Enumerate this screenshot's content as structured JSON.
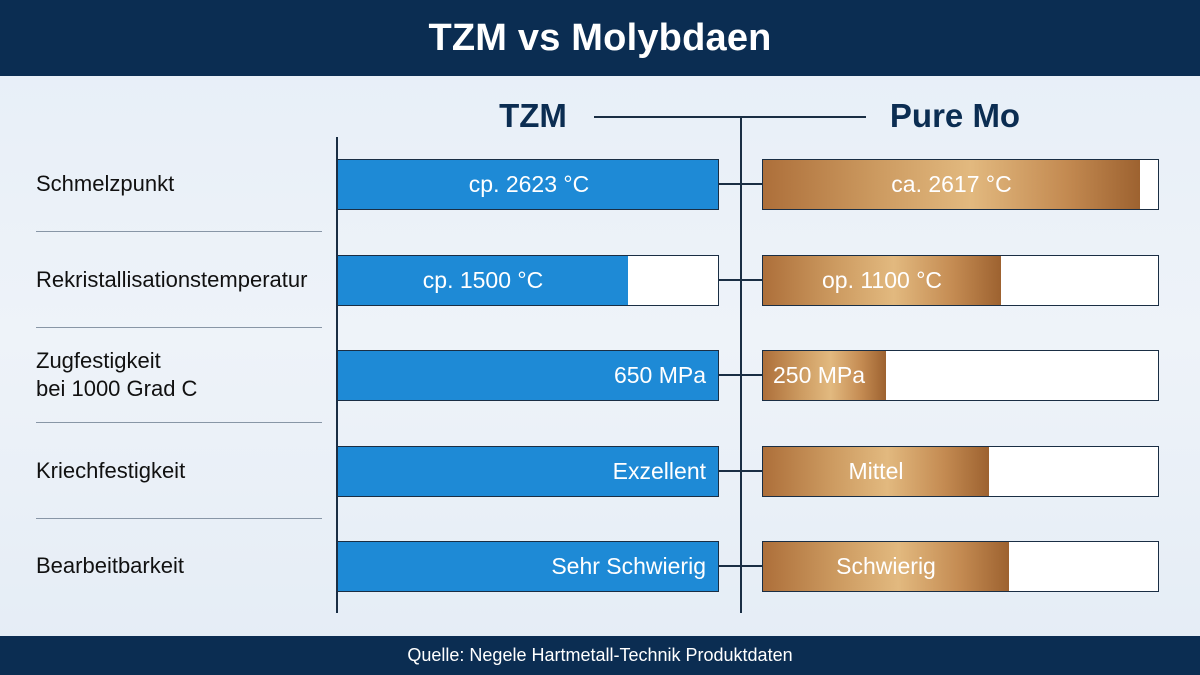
{
  "title": "TZM vs Molybdaen",
  "source": "Quelle: Negele Hartmetall-Technik Produktdaten",
  "colors": {
    "header": "#0b2d52",
    "tzm": "#1e8ad6",
    "pure_mo": "#c48b52",
    "background": "#e6eef7"
  },
  "chart_data": {
    "type": "bar",
    "title": "TZM vs Molybdaen",
    "series_titles": [
      "TZM",
      "Pure Mo"
    ],
    "categories": [
      "Schmelzpunkt",
      "Rekristallisationstemperatur",
      "Zugfestigkeit\nbei 1000 Grad C",
      "Kriechfestigkeit",
      "Bearbeitbarkeit"
    ],
    "series": [
      {
        "name": "TZM",
        "labels": [
          "cp. 2623 °C",
          "cp. 1500 °C",
          "650 MPa",
          "Exzellent",
          "Sehr Schwierig"
        ],
        "values": [
          1.0,
          0.76,
          1.0,
          1.0,
          1.0
        ]
      },
      {
        "name": "Pure Mo",
        "labels": [
          "ca. 2617 °C",
          "op. 1100 °C",
          "250 MPa",
          "Mittel",
          "Schwierig"
        ],
        "values": [
          0.95,
          0.6,
          0.31,
          0.57,
          0.62
        ]
      }
    ]
  }
}
